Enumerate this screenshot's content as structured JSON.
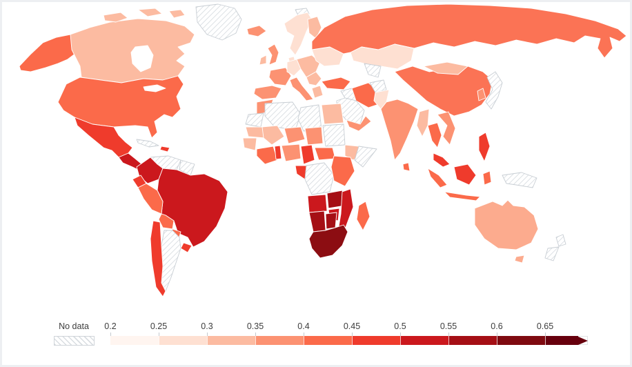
{
  "figure": {
    "background_color": "#ffffff",
    "frame_color": "#edeff2"
  },
  "chart_data": {
    "type": "choropleth",
    "title": "",
    "legend_position": "bottom-left",
    "legend": {
      "no_data_label": "No data",
      "no_data_outline": "#c7cdd3",
      "no_data_hatch_color": "#d4d9de",
      "text_color": "#3c3c3c",
      "tick_labels": [
        "0.2",
        "0.25",
        "0.3",
        "0.35",
        "0.4",
        "0.45",
        "0.5",
        "0.55",
        "0.6",
        "0.65"
      ],
      "segment_colors": [
        "#fff5f0",
        "#fee0d2",
        "#fcbba1",
        "#fc9272",
        "#fb6a4a",
        "#ef3b2c",
        "#cb181d",
        "#a50f15",
        "#7f0a10",
        "#67000d"
      ],
      "scale_min": 0.2,
      "scale_step": 0.05,
      "open_ended_arrow": true
    },
    "regions": [
      {
        "id": "alaska",
        "value": "0.4–0.45",
        "color": "#fb6a4a"
      },
      {
        "id": "canada",
        "value": "0.3–0.35",
        "color": "#fcbba1"
      },
      {
        "id": "canadian-arctic",
        "value": "0.3–0.35",
        "color": "#fcbba1"
      },
      {
        "id": "greenland",
        "value": "No data",
        "no_data": true
      },
      {
        "id": "usa",
        "value": "0.4–0.45",
        "color": "#fb6a4a"
      },
      {
        "id": "mexico",
        "value": "0.45–0.5",
        "color": "#ef3b2c"
      },
      {
        "id": "central-america",
        "value": "0.5–0.55",
        "color": "#cb181d"
      },
      {
        "id": "cuba",
        "value": "No data",
        "no_data": true
      },
      {
        "id": "hispaniola",
        "value": "0.45–0.5",
        "color": "#ef3b2c"
      },
      {
        "id": "colombia",
        "value": "0.5–0.55",
        "color": "#cb181d"
      },
      {
        "id": "venezuela",
        "value": "No data",
        "no_data": true
      },
      {
        "id": "guianas",
        "value": "No data",
        "no_data": true
      },
      {
        "id": "ecuador",
        "value": "0.45–0.5",
        "color": "#ef3b2c"
      },
      {
        "id": "peru",
        "value": "0.4–0.45",
        "color": "#fb6a4a"
      },
      {
        "id": "brazil",
        "value": "0.5–0.55",
        "color": "#cb181d"
      },
      {
        "id": "bolivia",
        "value": "0.4–0.45",
        "color": "#fb6a4a"
      },
      {
        "id": "paraguay",
        "value": "0.4–0.45",
        "color": "#fb6a4a"
      },
      {
        "id": "uruguay",
        "value": "0.45–0.5",
        "color": "#ef3b2c"
      },
      {
        "id": "chile",
        "value": "0.45–0.5",
        "color": "#ef3b2c"
      },
      {
        "id": "argentina",
        "value": "No data",
        "no_data": true
      },
      {
        "id": "iceland",
        "value": "0.35–0.4",
        "color": "#fc9272"
      },
      {
        "id": "norway-sweden",
        "value": "0.25–0.3",
        "color": "#fee0d2"
      },
      {
        "id": "finland",
        "value": "0.3–0.35",
        "color": "#fcbba1"
      },
      {
        "id": "denmark",
        "value": "0.25–0.3",
        "color": "#fee0d2"
      },
      {
        "id": "uk",
        "value": "0.35–0.4",
        "color": "#fc9272"
      },
      {
        "id": "ireland",
        "value": "0.3–0.35",
        "color": "#fcbba1"
      },
      {
        "id": "france",
        "value": "0.35–0.4",
        "color": "#fc9272"
      },
      {
        "id": "spain-portugal",
        "value": "0.35–0.4",
        "color": "#fc9272"
      },
      {
        "id": "germany",
        "value": "0.25–0.3",
        "color": "#fee0d2"
      },
      {
        "id": "central-europe",
        "value": "0.3–0.35",
        "color": "#fcbba1"
      },
      {
        "id": "italy",
        "value": "0.35–0.4",
        "color": "#fc9272"
      },
      {
        "id": "greece",
        "value": "0.3–0.35",
        "color": "#fcbba1"
      },
      {
        "id": "balkans",
        "value": "0.3–0.35",
        "color": "#fcbba1"
      },
      {
        "id": "ukraine-belarus",
        "value": "0.25–0.3",
        "color": "#fee0d2"
      },
      {
        "id": "russia",
        "value": "0.4–0.45",
        "color": "#fb7355"
      },
      {
        "id": "kazakhstan",
        "value": "0.25–0.3",
        "color": "#fee0d2"
      },
      {
        "id": "central-asia",
        "value": "No data",
        "no_data": true
      },
      {
        "id": "turkey",
        "value": "0.4–0.45",
        "color": "#fb6a4a"
      },
      {
        "id": "iraq",
        "value": "No data",
        "no_data": true
      },
      {
        "id": "iran",
        "value": "0.4–0.45",
        "color": "#fb6a4a"
      },
      {
        "id": "saudi-arabia",
        "value": "No data",
        "no_data": true
      },
      {
        "id": "yemen-oman",
        "value": "0.35–0.4",
        "color": "#fc9272"
      },
      {
        "id": "afghanistan",
        "value": "No data",
        "no_data": true
      },
      {
        "id": "pakistan",
        "value": "0.25–0.3",
        "color": "#fee0d2"
      },
      {
        "id": "india",
        "value": "0.35–0.4",
        "color": "#fc9272"
      },
      {
        "id": "sri-lanka",
        "value": "0.4–0.45",
        "color": "#fb6a4a"
      },
      {
        "id": "china",
        "value": "0.4–0.45",
        "color": "#fb7355"
      },
      {
        "id": "mongolia",
        "value": "0.3–0.35",
        "color": "#fcbba1"
      },
      {
        "id": "japan",
        "value": "No data",
        "no_data": true
      },
      {
        "id": "south-korea",
        "value": "0.35–0.4",
        "color": "#fc9272"
      },
      {
        "id": "myanmar",
        "value": "0.3–0.35",
        "color": "#fcbba1"
      },
      {
        "id": "thailand",
        "value": "0.4–0.45",
        "color": "#fb6a4a"
      },
      {
        "id": "laos-vietnam",
        "value": "0.35–0.4",
        "color": "#fc9272"
      },
      {
        "id": "malaysia",
        "value": "0.45–0.5",
        "color": "#ef3b2c"
      },
      {
        "id": "indonesia",
        "value": "0.4–0.45",
        "color": "#fb6a4a"
      },
      {
        "id": "borneo",
        "value": "0.45–0.5",
        "color": "#ef3b2c"
      },
      {
        "id": "philippines",
        "value": "0.45–0.5",
        "color": "#ef3b2c"
      },
      {
        "id": "papua-new-guinea",
        "value": "No data",
        "no_data": true
      },
      {
        "id": "svalbard",
        "value": "No data",
        "no_data": true
      },
      {
        "id": "morocco",
        "value": "0.35–0.4",
        "color": "#fc9272"
      },
      {
        "id": "western-sahara",
        "value": "No data",
        "no_data": true
      },
      {
        "id": "algeria",
        "value": "No data",
        "no_data": true
      },
      {
        "id": "libya",
        "value": "No data",
        "no_data": true
      },
      {
        "id": "egypt",
        "value": "0.3–0.35",
        "color": "#fcbba1"
      },
      {
        "id": "mauritania",
        "value": "0.3–0.35",
        "color": "#fcbba1"
      },
      {
        "id": "mali",
        "value": "0.3–0.35",
        "color": "#fcbba1"
      },
      {
        "id": "niger",
        "value": "0.35–0.4",
        "color": "#fc9272"
      },
      {
        "id": "chad",
        "value": "0.35–0.4",
        "color": "#fc9272"
      },
      {
        "id": "sudan",
        "value": "No data",
        "no_data": true
      },
      {
        "id": "senegal-guinea",
        "value": "0.3–0.35",
        "color": "#fcbba1"
      },
      {
        "id": "cote-divoire-ghana",
        "value": "0.4–0.45",
        "color": "#fb6a4a"
      },
      {
        "id": "togo-benin",
        "value": "0.45–0.5",
        "color": "#ef3b2c"
      },
      {
        "id": "nigeria",
        "value": "0.35–0.4",
        "color": "#fc9272"
      },
      {
        "id": "cameroon",
        "value": "0.45–0.5",
        "color": "#ef3b2c"
      },
      {
        "id": "central-african-republic",
        "value": "0.4–0.45",
        "color": "#fb6a4a"
      },
      {
        "id": "gabon-congo",
        "value": "0.45–0.5",
        "color": "#ef3b2c"
      },
      {
        "id": "drc",
        "value": "No data",
        "no_data": true
      },
      {
        "id": "ethiopia",
        "value": "0.3–0.35",
        "color": "#fcbba1"
      },
      {
        "id": "somalia",
        "value": "No data",
        "no_data": true
      },
      {
        "id": "east-africa",
        "value": "0.4–0.45",
        "color": "#fb6a4a"
      },
      {
        "id": "angola",
        "value": "0.5–0.55",
        "color": "#cb181d"
      },
      {
        "id": "zambia",
        "value": "0.55–0.6",
        "color": "#a50f15"
      },
      {
        "id": "mozambique",
        "value": "0.5–0.55",
        "color": "#cb181d"
      },
      {
        "id": "zimbabwe",
        "value": "0.5–0.55",
        "color": "#cb181d"
      },
      {
        "id": "namibia",
        "value": "0.55–0.6",
        "color": "#a50f15"
      },
      {
        "id": "botswana",
        "value": "0.55–0.6",
        "color": "#a50f15"
      },
      {
        "id": "south-africa",
        "value": "0.6–0.65",
        "color": "#8c0d12"
      },
      {
        "id": "madagascar",
        "value": "0.4–0.45",
        "color": "#fb6a4a"
      },
      {
        "id": "australia",
        "value": "0.3–0.35",
        "color": "#fcab8e"
      },
      {
        "id": "tasmania",
        "value": "0.3–0.35",
        "color": "#fcab8e"
      },
      {
        "id": "new-zealand",
        "value": "No data",
        "no_data": true
      }
    ]
  }
}
